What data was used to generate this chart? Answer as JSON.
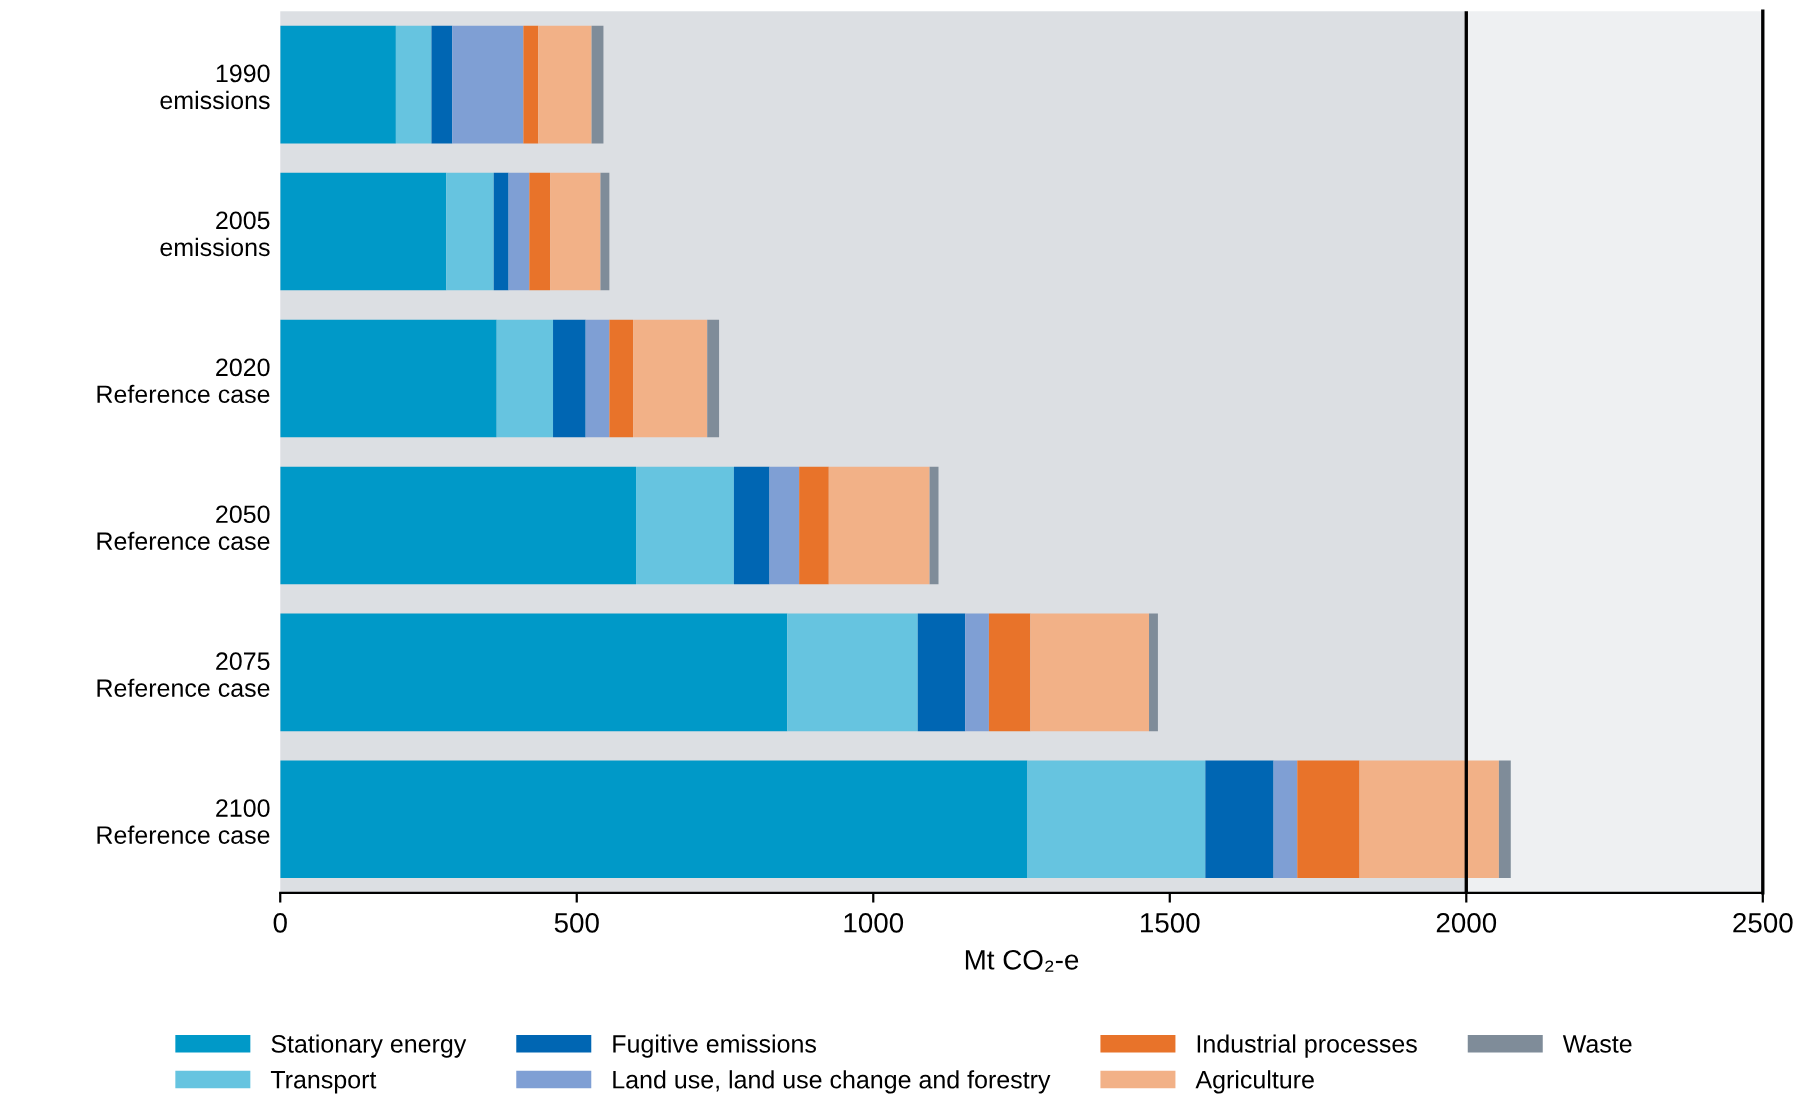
{
  "chart_data": {
    "type": "bar",
    "orientation": "horizontal",
    "stacked": true,
    "categories": [
      "1990\nemissions",
      "2005\nemissions",
      "2020\nReference case",
      "2050\nReference case",
      "2075\nReference case",
      "2100\nReference case"
    ],
    "xlabel": "Mt CO₂-e",
    "xlim": [
      0,
      2500
    ],
    "xticks": [
      0,
      500,
      1000,
      1500,
      2000,
      2500
    ],
    "grid": false,
    "legend": "bottom",
    "bands": [
      {
        "axis": "x",
        "from": 0,
        "to": 2000,
        "color": "#dcdfe3"
      }
    ],
    "ref_lines": [
      {
        "axis": "x",
        "value": 2000,
        "color": "#000000"
      }
    ],
    "series": [
      {
        "name": "Stationary energy",
        "color": "#0099c8",
        "values": [
          195,
          280,
          365,
          600,
          855,
          1260
        ]
      },
      {
        "name": "Transport",
        "color": "#66c4e0",
        "values": [
          60,
          80,
          95,
          165,
          220,
          300
        ]
      },
      {
        "name": "Fugitive emissions",
        "color": "#0066b3",
        "values": [
          35,
          25,
          55,
          60,
          80,
          115
        ]
      },
      {
        "name": "Land use, land use change and forestry",
        "color": "#7f9fd4",
        "values": [
          120,
          35,
          40,
          50,
          40,
          40
        ]
      },
      {
        "name": "Industrial processes",
        "color": "#e8732a",
        "values": [
          25,
          35,
          40,
          50,
          70,
          105
        ]
      },
      {
        "name": "Agriculture",
        "color": "#f2b187",
        "values": [
          90,
          85,
          125,
          170,
          200,
          235
        ]
      },
      {
        "name": "Waste",
        "color": "#7f8c99",
        "values": [
          20,
          15,
          20,
          15,
          15,
          20
        ]
      }
    ]
  }
}
